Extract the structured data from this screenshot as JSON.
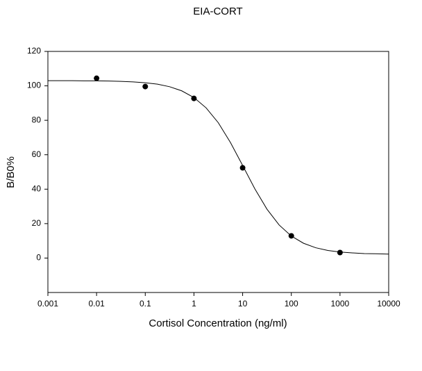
{
  "chart_data": {
    "type": "scatter",
    "title": "EIA-CORT",
    "x_label": "Cortisol Concentration (ng/ml)",
    "y_label": "B/B0%",
    "xscale": "log",
    "xlim": [
      0.001,
      10000
    ],
    "xticks": [
      0.001,
      0.01,
      0.1,
      1,
      10,
      100,
      1000,
      10000
    ],
    "ylim": [
      -20,
      120
    ],
    "yticks": [
      0,
      20,
      40,
      60,
      80,
      100,
      120
    ],
    "grid": false,
    "series": [
      {
        "type": "scatter",
        "color": "#000000",
        "x": [
          0.01,
          0.1,
          1,
          10,
          100,
          1000
        ],
        "values": [
          104.4,
          99.6,
          92.7,
          52.4,
          12.9,
          3.2
        ]
      },
      {
        "type": "line",
        "color": "#000000",
        "x": [
          0.001,
          0.00178,
          0.00316,
          0.00562,
          0.01,
          0.0178,
          0.0316,
          0.0562,
          0.1,
          0.178,
          0.316,
          0.562,
          1,
          1.78,
          3.16,
          5.62,
          10,
          17.8,
          31.6,
          56.2,
          100,
          178,
          316,
          562,
          1000,
          1780,
          3160,
          5620,
          10000
        ],
        "values": [
          103.0,
          103.0,
          103.0,
          102.9,
          102.9,
          102.8,
          102.6,
          102.3,
          101.8,
          101.0,
          99.5,
          97.1,
          93.2,
          87.2,
          78.6,
          67.1,
          53.8,
          40.2,
          28.4,
          19.2,
          12.8,
          8.6,
          6.0,
          4.4,
          3.5,
          3.0,
          2.6,
          2.5,
          2.3
        ]
      }
    ]
  }
}
